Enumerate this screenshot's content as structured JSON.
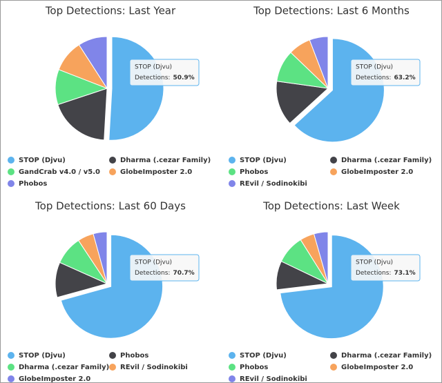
{
  "chart_data": [
    {
      "type": "pie",
      "title": "Top Detections: Last Year",
      "categories": [
        "STOP (Djvu)",
        "Dharma (.cezar Family)",
        "GandCrab v4.0 / v5.0",
        "GlobeImposter 2.0",
        "Phobos"
      ],
      "values": [
        50.9,
        19,
        11,
        10,
        9.1
      ],
      "colors": [
        "#5cb3ee",
        "#434348",
        "#5ce283",
        "#f7a35c",
        "#8085e9"
      ],
      "tooltip": {
        "label": "Detections:",
        "value_label": "50.9%"
      }
    },
    {
      "type": "pie",
      "title": "Top Detections: Last 6 Months",
      "categories": [
        "STOP (Djvu)",
        "Dharma (.cezar Family)",
        "Phobos",
        "GlobeImposter 2.0",
        "REvil / Sodinokibi"
      ],
      "values": [
        63.2,
        14,
        10,
        7,
        5.8
      ],
      "colors": [
        "#5cb3ee",
        "#434348",
        "#5ce283",
        "#f7a35c",
        "#8085e9"
      ],
      "tooltip": {
        "label": "Detections:",
        "value_label": "63.2%"
      }
    },
    {
      "type": "pie",
      "title": "Top Detections: Last 60 Days",
      "categories": [
        "STOP (Djvu)",
        "Phobos",
        "Dharma (.cezar Family)",
        "REvil / Sodinokibi",
        "GlobeImposter 2.0"
      ],
      "values": [
        70.7,
        11,
        9,
        5,
        4.3
      ],
      "colors": [
        "#5cb3ee",
        "#434348",
        "#5ce283",
        "#f7a35c",
        "#8085e9"
      ],
      "tooltip": {
        "label": "Detections:",
        "value_label": "70.7%"
      }
    },
    {
      "type": "pie",
      "title": "Top Detections: Last Week",
      "categories": [
        "STOP (Djvu)",
        "Dharma (.cezar Family)",
        "Phobos",
        "GlobeImposter 2.0",
        "REvil / Sodinokibi"
      ],
      "values": [
        73.1,
        9,
        9,
        4.5,
        4.4
      ],
      "colors": [
        "#5cb3ee",
        "#434348",
        "#5ce283",
        "#f7a35c",
        "#8085e9"
      ],
      "tooltip": {
        "label": "Detections:",
        "value_label": "73.1%"
      }
    }
  ]
}
